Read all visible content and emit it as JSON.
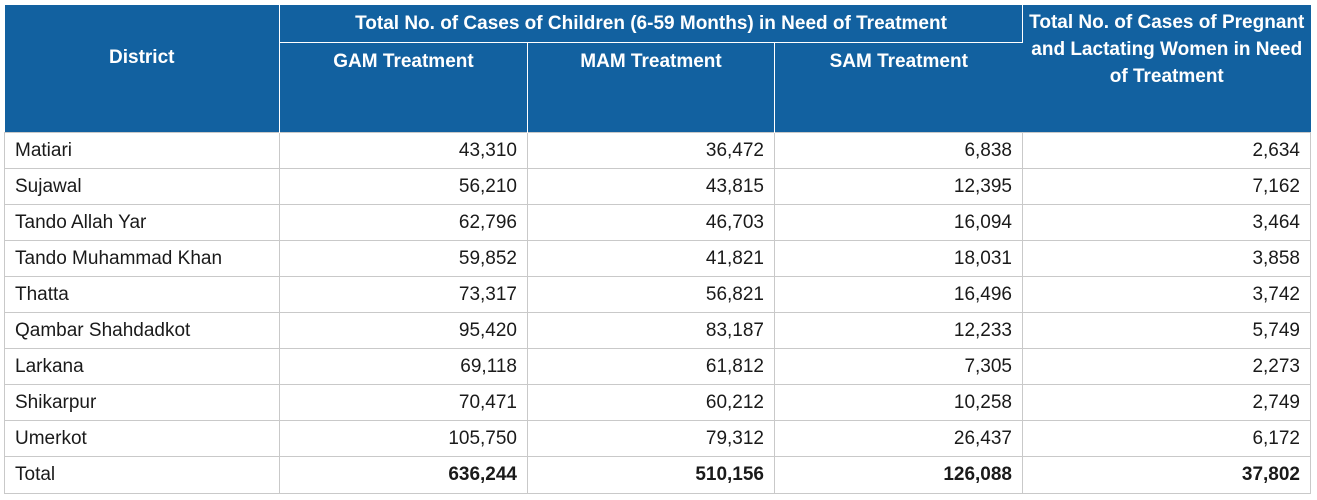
{
  "header": {
    "district": "District",
    "children_group": "Total No. of Cases of Children (6-59 Months) in Need of Treatment",
    "gam": "GAM Treatment",
    "mam": "MAM Treatment",
    "sam": "SAM Treatment",
    "plw": "Total No. of Cases of Pregnant and Lactating Women in Need of Treatment"
  },
  "rows": [
    {
      "district": "Matiari",
      "gam": "43,310",
      "mam": "36,472",
      "sam": "6,838",
      "plw": "2,634"
    },
    {
      "district": "Sujawal",
      "gam": "56,210",
      "mam": "43,815",
      "sam": "12,395",
      "plw": "7,162"
    },
    {
      "district": "Tando Allah Yar",
      "gam": "62,796",
      "mam": "46,703",
      "sam": "16,094",
      "plw": "3,464"
    },
    {
      "district": "Tando Muhammad Khan",
      "gam": "59,852",
      "mam": "41,821",
      "sam": "18,031",
      "plw": "3,858"
    },
    {
      "district": "Thatta",
      "gam": "73,317",
      "mam": "56,821",
      "sam": "16,496",
      "plw": "3,742"
    },
    {
      "district": "Qambar Shahdadkot",
      "gam": "95,420",
      "mam": "83,187",
      "sam": "12,233",
      "plw": "5,749"
    },
    {
      "district": "Larkana",
      "gam": "69,118",
      "mam": "61,812",
      "sam": "7,305",
      "plw": "2,273"
    },
    {
      "district": "Shikarpur",
      "gam": "70,471",
      "mam": "60,212",
      "sam": "10,258",
      "plw": "2,749"
    },
    {
      "district": "Umerkot",
      "gam": "105,750",
      "mam": "79,312",
      "sam": "26,437",
      "plw": "6,172"
    }
  ],
  "total": {
    "district": "Total",
    "gam": "636,244",
    "mam": "510,156",
    "sam": "126,088",
    "plw": "37,802"
  },
  "colors": {
    "header_bg": "#1261a0",
    "header_text": "#ffffff",
    "border": "#c9c9c9"
  }
}
